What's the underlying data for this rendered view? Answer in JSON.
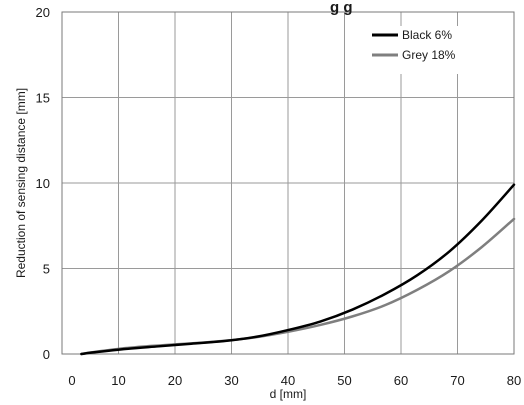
{
  "chart_data": {
    "type": "line",
    "title_fragment": "g  g",
    "xlabel": "d [mm]",
    "ylabel": "Reduction of sensing distance [mm]",
    "xlim": [
      10,
      80
    ],
    "ylim": [
      0,
      20
    ],
    "x_ticks": [
      "0",
      "10",
      "20",
      "30",
      "40",
      "50",
      "60",
      "70",
      "80"
    ],
    "y_ticks": [
      "0",
      "5",
      "10",
      "15",
      "20"
    ],
    "grid": true,
    "legend": "top-right",
    "series": [
      {
        "name": "Black 6%",
        "color": "#000000",
        "x": [
          13,
          15,
          20,
          25,
          30,
          35,
          40,
          45,
          50,
          55,
          60,
          65,
          70,
          75,
          80
        ],
        "y": [
          0,
          0.1,
          0.3,
          0.45,
          0.6,
          0.75,
          1.0,
          1.4,
          1.9,
          2.6,
          3.5,
          4.6,
          6.0,
          7.8,
          9.9
        ]
      },
      {
        "name": "Grey 18%",
        "color": "#7f7f7f",
        "x": [
          13,
          15,
          20,
          25,
          30,
          35,
          40,
          45,
          50,
          55,
          60,
          65,
          70,
          75,
          80
        ],
        "y": [
          0,
          0.12,
          0.35,
          0.5,
          0.62,
          0.77,
          0.98,
          1.3,
          1.7,
          2.2,
          2.85,
          3.75,
          4.85,
          6.25,
          7.9
        ]
      }
    ]
  }
}
